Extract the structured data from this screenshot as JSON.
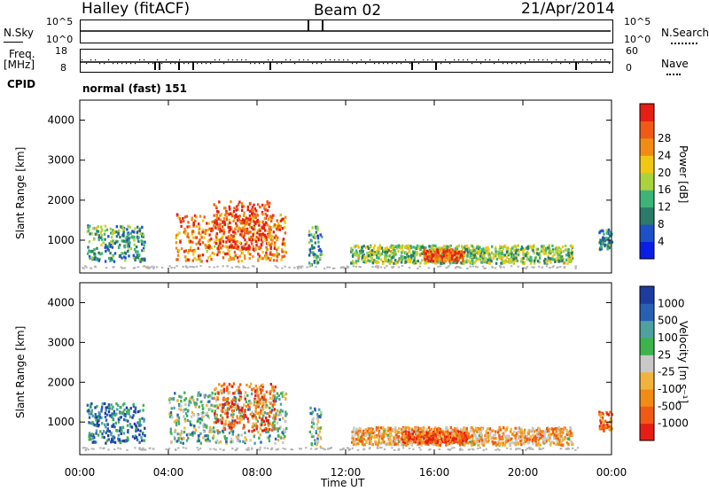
{
  "header": {
    "station": "Halley (fitACF)",
    "beam": "Beam 02",
    "date": "21/Apr/2014"
  },
  "summary_panels": {
    "nsky_label": "N.Sky",
    "nsky_ticks": [
      "10^5",
      "10^0"
    ],
    "nsearch_label": "N.Search",
    "nsearch_ticks": [
      "10^5",
      "10^0"
    ],
    "freq_label": "Freq.",
    "freq_unit": "[MHz]",
    "freq_ticks": [
      "18",
      "8"
    ],
    "nave_label": "Nave",
    "nave_ticks": [
      "60",
      "0"
    ],
    "cpid_label": "CPID",
    "cpid_value": "normal (fast) 151"
  },
  "colors": {
    "power": [
      "#0a1ee6",
      "#1e50c8",
      "#2b7a6a",
      "#3cb478",
      "#aad23c",
      "#f0c814",
      "#f08c14",
      "#f05a14",
      "#e61e14"
    ],
    "velocity": [
      "#e61e14",
      "#f05a14",
      "#f08c14",
      "#f0b43c",
      "#c8c8c8",
      "#3cb44b",
      "#50a0a0",
      "#2860b4",
      "#1e3ca0"
    ]
  },
  "chart_data": [
    {
      "type": "heatmap",
      "name": "power",
      "ylabel": "Slant Range [km]",
      "y_ticks": [
        1000,
        2000,
        3000,
        4000
      ],
      "ylim": [
        180,
        4500
      ],
      "x_ticks": [
        "00:00",
        "04:00",
        "08:00",
        "12:00",
        "16:00",
        "20:00",
        "00:00"
      ],
      "xlim_hours": [
        0,
        24
      ],
      "colorbar_label": "Power [dB]",
      "colorbar_ticks": [
        4,
        8,
        12,
        16,
        20,
        24,
        28
      ],
      "regions": [
        {
          "t": [
            0.3,
            2.9
          ],
          "r": [
            500,
            1400
          ],
          "level": 0.35
        },
        {
          "t": [
            4.3,
            9.3
          ],
          "r": [
            500,
            1700
          ],
          "level": 0.75
        },
        {
          "t": [
            6.0,
            8.6
          ],
          "r": [
            800,
            2000
          ],
          "level": 0.9
        },
        {
          "t": [
            10.3,
            10.9
          ],
          "r": [
            400,
            1400
          ],
          "level": 0.3
        },
        {
          "t": [
            12.2,
            22.2
          ],
          "r": [
            450,
            900
          ],
          "level": 0.45
        },
        {
          "t": [
            15.5,
            17.3
          ],
          "r": [
            500,
            800
          ],
          "level": 0.85
        },
        {
          "t": [
            23.4,
            24.0
          ],
          "r": [
            800,
            1300
          ],
          "level": 0.3
        }
      ]
    },
    {
      "type": "heatmap",
      "name": "velocity",
      "ylabel": "Slant Range [km]",
      "y_ticks": [
        1000,
        2000,
        3000,
        4000
      ],
      "ylim": [
        180,
        4500
      ],
      "x_ticks": [
        "00:00",
        "04:00",
        "08:00",
        "12:00",
        "16:00",
        "20:00",
        "00:00"
      ],
      "xlim_hours": [
        0,
        24
      ],
      "xlabel": "Time UT",
      "colorbar_label": "Velocity [m s⁻¹]",
      "colorbar_ticks": [
        1000,
        500,
        100,
        25,
        -25,
        -100,
        -500,
        -1000
      ],
      "regions": [
        {
          "t": [
            0.3,
            2.9
          ],
          "r": [
            500,
            1500
          ],
          "level": 0.8
        },
        {
          "t": [
            4.0,
            9.3
          ],
          "r": [
            500,
            1800
          ],
          "level": 0.6
        },
        {
          "t": [
            6.0,
            8.8
          ],
          "r": [
            800,
            2000
          ],
          "level": 0.2
        },
        {
          "t": [
            10.3,
            10.9
          ],
          "r": [
            400,
            1400
          ],
          "level": 0.6
        },
        {
          "t": [
            12.2,
            22.2
          ],
          "r": [
            450,
            900
          ],
          "level": 0.35
        },
        {
          "t": [
            14.5,
            17.5
          ],
          "r": [
            500,
            800
          ],
          "level": 0.15
        },
        {
          "t": [
            23.4,
            24.0
          ],
          "r": [
            800,
            1300
          ],
          "level": 0.2
        }
      ]
    }
  ]
}
